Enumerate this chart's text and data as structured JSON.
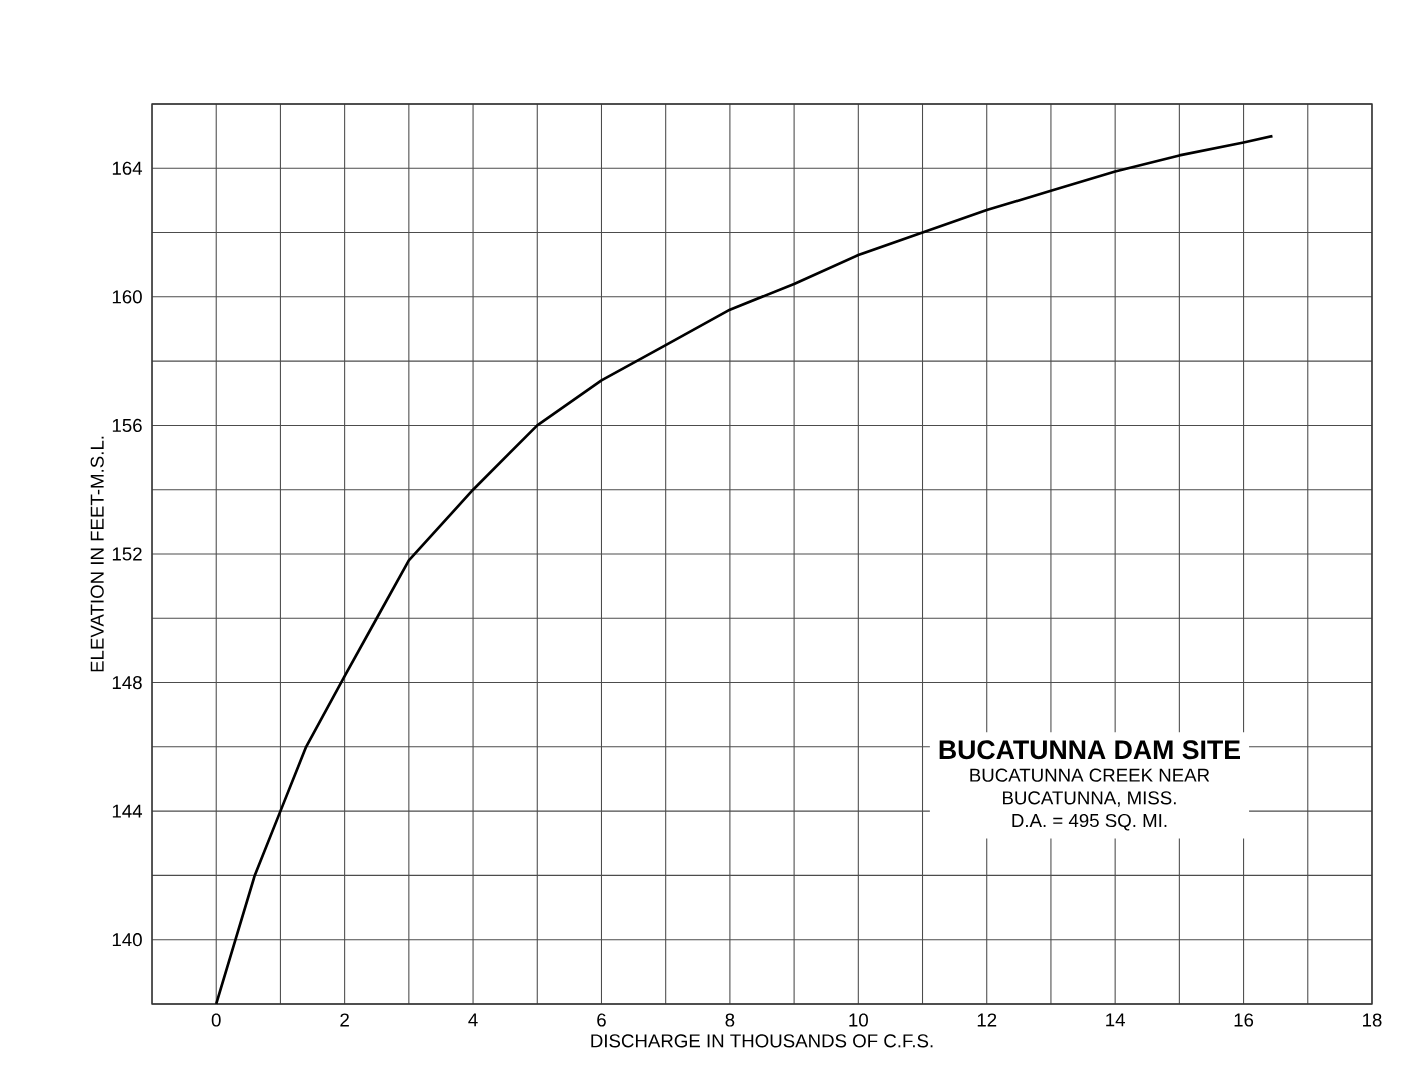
{
  "chart_data": {
    "type": "line",
    "title": "BUCATUNNA DAM SITE",
    "xlabel": "DISCHARGE IN THOUSANDS OF C.F.S.",
    "ylabel": "ELEVATION IN FEET-M.S.L.",
    "annotations": [
      "BUCATUNNA CREEK NEAR",
      "BUCATUNNA, MISS.",
      "D.A. = 495 SQ. MI."
    ],
    "x": [
      0,
      0.3,
      0.6,
      1,
      1.4,
      2,
      2.5,
      3,
      4,
      5,
      6,
      7,
      8,
      9,
      10,
      11,
      12,
      13,
      14,
      15,
      16,
      16.45
    ],
    "series": [
      {
        "color": "#000000",
        "values": [
          138,
          140,
          142,
          144,
          146,
          148.2,
          150,
          151.8,
          154,
          156,
          157.4,
          158.5,
          159.6,
          160.4,
          161.3,
          162,
          162.7,
          163.3,
          163.9,
          164.4,
          164.8,
          165
        ]
      }
    ],
    "xlim": [
      -1,
      18
    ],
    "ylim": [
      138,
      166
    ],
    "xticks": [
      {
        "value": -1,
        "label": null
      },
      0,
      {
        "value": 1,
        "label": null
      },
      2,
      {
        "value": 3,
        "label": null
      },
      4,
      {
        "value": 5,
        "label": null
      },
      6,
      {
        "value": 7,
        "label": null
      },
      8,
      {
        "value": 9,
        "label": null
      },
      10,
      {
        "value": 11,
        "label": null
      },
      12,
      {
        "value": 13,
        "label": null
      },
      14,
      {
        "value": 15,
        "label": null
      },
      16,
      {
        "value": 17,
        "label": null
      },
      18
    ],
    "yticks": [
      {
        "value": 138,
        "label": null
      },
      140,
      {
        "value": 142,
        "label": null
      },
      144,
      {
        "value": 146,
        "label": null
      },
      148,
      {
        "value": 150,
        "label": null
      },
      152,
      {
        "value": 154,
        "label": null
      },
      156,
      {
        "value": 158,
        "label": null
      },
      160,
      {
        "value": 162,
        "label": null
      },
      164,
      {
        "value": 166,
        "label": null
      }
    ],
    "grid": true
  }
}
